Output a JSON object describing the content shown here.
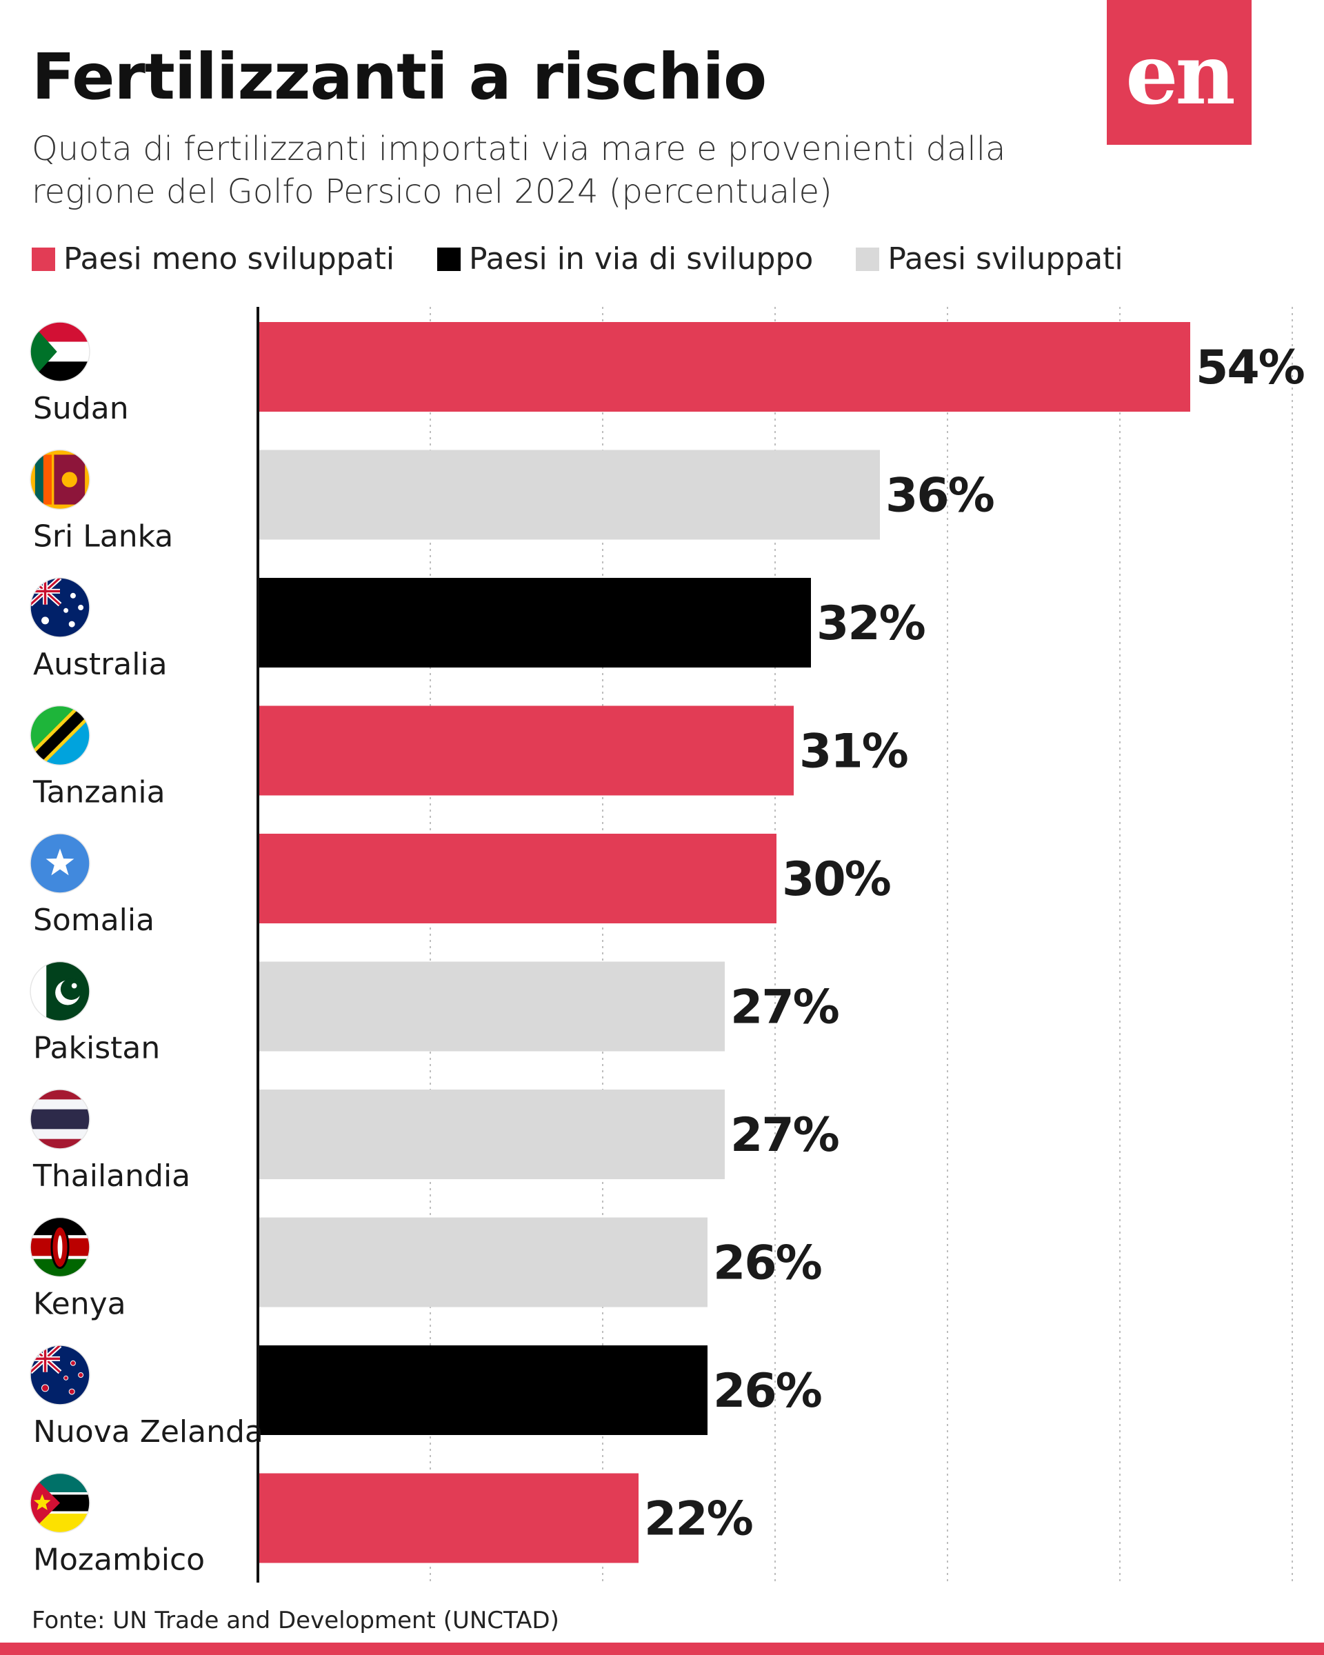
{
  "header": {
    "title": "Fertilizzanti a rischio",
    "subtitle": "Quota di fertilizzanti importati via mare e provenienti dalla regione del Golfo Persico nel 2024 (percentuale)",
    "logo_text": "en"
  },
  "colors": {
    "least_developed": "#e23c55",
    "developing": "#000000",
    "developed": "#d9d9d9",
    "label_text": "#1a1a1a"
  },
  "legend": [
    {
      "label": "Paesi meno sviluppati",
      "color": "#e23c55"
    },
    {
      "label": "Paesi in via di sviluppo",
      "color": "#000000"
    },
    {
      "label": "Paesi sviluppati",
      "color": "#d9d9d9"
    }
  ],
  "chart_data": {
    "type": "bar",
    "orientation": "horizontal",
    "categories": [
      "Sudan",
      "Sri Lanka",
      "Australia",
      "Tanzania",
      "Somalia",
      "Pakistan",
      "Thailandia",
      "Kenya",
      "Nuova Zelanda",
      "Mozambico"
    ],
    "values": [
      54,
      36,
      32,
      31,
      30,
      27,
      27,
      26,
      26,
      22
    ],
    "value_labels": [
      "54%",
      "36%",
      "32%",
      "31%",
      "30%",
      "27%",
      "27%",
      "26%",
      "26%",
      "22%"
    ],
    "groups": [
      "least_developed",
      "developed",
      "developing",
      "least_developed",
      "least_developed",
      "developed",
      "developed",
      "developed",
      "developing",
      "least_developed"
    ],
    "flag_icons": [
      "sudan-flag-icon",
      "sri-lanka-flag-icon",
      "australia-flag-icon",
      "tanzania-flag-icon",
      "somalia-flag-icon",
      "pakistan-flag-icon",
      "thailand-flag-icon",
      "kenya-flag-icon",
      "new-zealand-flag-icon",
      "mozambique-flag-icon"
    ],
    "xlim": [
      0,
      60
    ],
    "grid": true,
    "legend_position": "top-left"
  },
  "footer": {
    "source": "Fonte: UN Trade and Development (UNCTAD)"
  }
}
